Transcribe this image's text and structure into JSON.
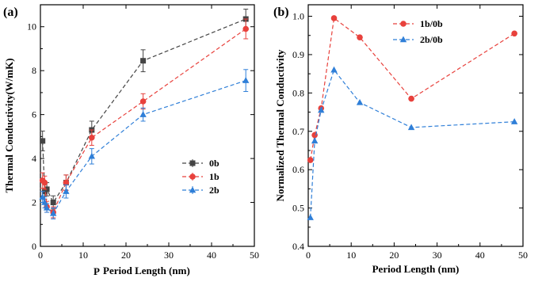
{
  "chart_data": [
    {
      "type": "line",
      "panel_label": "(a)",
      "xlabel_prefix": "P",
      "xlabel": "Period Length (nm)",
      "ylabel": "Thermal Conductivity(W/mK)",
      "xlim": [
        0,
        50
      ],
      "ylim": [
        0,
        11
      ],
      "xticks": [
        0,
        10,
        20,
        30,
        40,
        50
      ],
      "yticks": [
        0,
        2,
        4,
        6,
        8,
        10
      ],
      "legend_position": "center-right",
      "series": [
        {
          "name": "0b",
          "color": "#444444",
          "marker": "square",
          "x": [
            0.5,
            1,
            1.5,
            3,
            6,
            12,
            24,
            48
          ],
          "y": [
            4.8,
            2.5,
            2.6,
            2.0,
            2.9,
            5.3,
            8.45,
            10.35
          ],
          "err": [
            0.45,
            0.35,
            0.3,
            0.3,
            0.35,
            0.4,
            0.5,
            0.45
          ]
        },
        {
          "name": "1b",
          "color": "#e8413c",
          "marker": "circle",
          "x": [
            0.5,
            1,
            1.5,
            3,
            6,
            12,
            24,
            48
          ],
          "y": [
            3.0,
            2.9,
            1.8,
            1.55,
            2.9,
            4.95,
            6.6,
            9.9
          ],
          "err": [
            0.35,
            0.3,
            0.25,
            0.25,
            0.35,
            0.35,
            0.35,
            0.45
          ]
        },
        {
          "name": "2b",
          "color": "#2f7fd8",
          "marker": "triangle",
          "x": [
            0.5,
            1,
            1.5,
            3,
            6,
            12,
            24,
            48
          ],
          "y": [
            2.25,
            2.0,
            1.75,
            1.5,
            2.5,
            4.1,
            6.0,
            7.55
          ],
          "err": [
            0.25,
            0.25,
            0.2,
            0.25,
            0.3,
            0.35,
            0.3,
            0.5
          ]
        }
      ]
    },
    {
      "type": "line",
      "panel_label": "(b)",
      "xlabel": "Period Length (nm)",
      "ylabel": "Normalized Thermal Conductivity",
      "xlim": [
        0,
        50
      ],
      "ylim": [
        0.4,
        1.03
      ],
      "xticks": [
        0,
        10,
        20,
        30,
        40,
        50
      ],
      "yticks": [
        0.4,
        0.5,
        0.6,
        0.7,
        0.8,
        0.9,
        1.0
      ],
      "legend_position": "top-left",
      "series": [
        {
          "name": "1b/0b",
          "color": "#e8413c",
          "marker": "circle",
          "x": [
            0.5,
            1.5,
            3,
            6,
            12,
            24,
            48
          ],
          "y": [
            0.625,
            0.69,
            0.76,
            0.995,
            0.945,
            0.785,
            0.955
          ]
        },
        {
          "name": "2b/0b",
          "color": "#2f7fd8",
          "marker": "triangle",
          "x": [
            0.5,
            1.5,
            3,
            6,
            12,
            24,
            48
          ],
          "y": [
            0.475,
            0.675,
            0.755,
            0.86,
            0.775,
            0.71,
            0.725
          ]
        }
      ]
    }
  ]
}
